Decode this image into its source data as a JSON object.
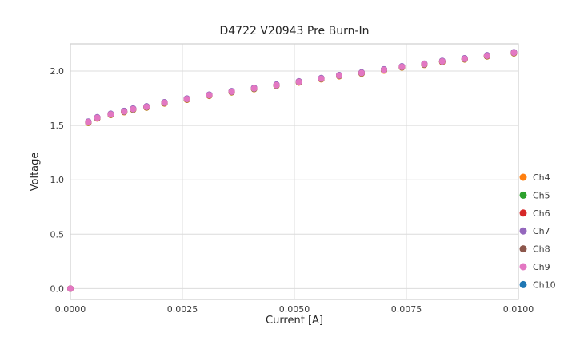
{
  "chart_data": {
    "type": "scatter",
    "title": "D4722 V20943 Pre Burn-In",
    "xlabel": "Current [A]",
    "ylabel": "Voltage",
    "xlim": [
      0.0,
      0.01
    ],
    "ylim": [
      -0.1,
      2.25
    ],
    "xticks": [
      0.0,
      0.0025,
      0.005,
      0.0075,
      0.01
    ],
    "xtick_labels": [
      "0.0000",
      "0.0025",
      "0.0050",
      "0.0075",
      "0.0100"
    ],
    "yticks": [
      0.0,
      0.5,
      1.0,
      1.5,
      2.0
    ],
    "ytick_labels": [
      "0.0",
      "0.5",
      "1.0",
      "1.5",
      "2.0"
    ],
    "grid": true,
    "legend_position": "lower right",
    "x": [
      0.0,
      0.0004,
      0.0006,
      0.0009,
      0.0012,
      0.0014,
      0.0017,
      0.0021,
      0.0026,
      0.0031,
      0.0036,
      0.0041,
      0.0046,
      0.0051,
      0.0056,
      0.006,
      0.0065,
      0.007,
      0.0074,
      0.0079,
      0.0083,
      0.0088,
      0.0093,
      0.0099
    ],
    "series": [
      {
        "name": "Ch4",
        "color": "#ff7f0e",
        "values": [
          0.0,
          1.524,
          1.564,
          1.596,
          1.622,
          1.644,
          1.664,
          1.702,
          1.736,
          1.772,
          1.804,
          1.834,
          1.864,
          1.894,
          1.924,
          1.952,
          1.976,
          2.004,
          2.032,
          2.056,
          2.082,
          2.106,
          2.134,
          2.162
        ]
      },
      {
        "name": "Ch5",
        "color": "#2ca02c",
        "values": [
          0.0,
          1.527,
          1.567,
          1.599,
          1.625,
          1.647,
          1.667,
          1.705,
          1.739,
          1.775,
          1.807,
          1.837,
          1.867,
          1.897,
          1.927,
          1.955,
          1.979,
          2.007,
          2.035,
          2.059,
          2.085,
          2.109,
          2.137,
          2.165
        ]
      },
      {
        "name": "Ch6",
        "color": "#d62728",
        "values": [
          0.0,
          1.534,
          1.574,
          1.606,
          1.632,
          1.654,
          1.674,
          1.712,
          1.746,
          1.782,
          1.814,
          1.844,
          1.874,
          1.904,
          1.934,
          1.962,
          1.986,
          2.014,
          2.042,
          2.066,
          2.092,
          2.116,
          2.144,
          2.172
        ]
      },
      {
        "name": "Ch7",
        "color": "#9467bd",
        "values": [
          0.0,
          1.536,
          1.576,
          1.608,
          1.634,
          1.656,
          1.676,
          1.714,
          1.748,
          1.784,
          1.816,
          1.846,
          1.876,
          1.906,
          1.936,
          1.964,
          1.988,
          2.016,
          2.044,
          2.068,
          2.094,
          2.118,
          2.146,
          2.174
        ]
      },
      {
        "name": "Ch8",
        "color": "#8c564b",
        "values": [
          0.0,
          1.528,
          1.568,
          1.6,
          1.626,
          1.648,
          1.668,
          1.706,
          1.74,
          1.776,
          1.808,
          1.838,
          1.868,
          1.898,
          1.928,
          1.956,
          1.98,
          2.008,
          2.036,
          2.06,
          2.086,
          2.11,
          2.138,
          2.166
        ]
      },
      {
        "name": "Ch9",
        "color": "#e377c2",
        "values": [
          0.0,
          1.53,
          1.57,
          1.602,
          1.628,
          1.65,
          1.67,
          1.708,
          1.742,
          1.778,
          1.81,
          1.84,
          1.87,
          1.9,
          1.93,
          1.958,
          1.982,
          2.01,
          2.038,
          2.062,
          2.088,
          2.112,
          2.14,
          2.168
        ]
      },
      {
        "name": "Ch10",
        "color": "#1f77b4",
        "values": [
          null,
          null,
          null,
          null,
          null,
          null,
          null,
          null,
          null,
          null,
          null,
          null,
          null,
          null,
          null,
          null,
          null,
          null,
          null,
          null,
          null,
          null,
          null,
          null
        ]
      }
    ],
    "style": {
      "grid_color": "#dcdcdc",
      "spine_color": "#cfcfcf",
      "tick_label_color": "#3b3b3b",
      "marker_radius": 4
    }
  }
}
